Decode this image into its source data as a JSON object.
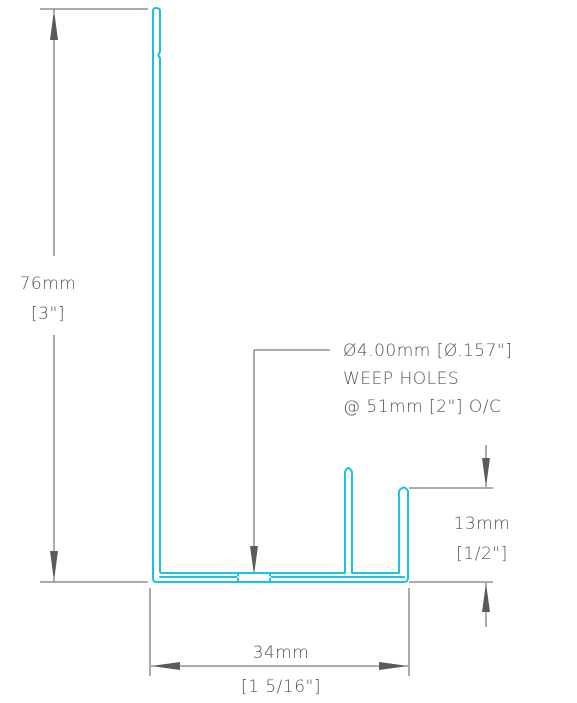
{
  "dimensions": {
    "height": {
      "metric": "76mm",
      "imperial": "[3\"]"
    },
    "lip": {
      "metric": "13mm",
      "imperial": "[1/2\"]"
    },
    "width": {
      "metric": "34mm",
      "imperial": "[1 5/16\"]"
    }
  },
  "note": {
    "line1": "Ø4.00mm [Ø.157\"]",
    "line2": "WEEP HOLES",
    "line3": "@ 51mm [2\"] O/C"
  },
  "colors": {
    "profile": "#19c2e0",
    "dimension": "#5a5a5a"
  }
}
